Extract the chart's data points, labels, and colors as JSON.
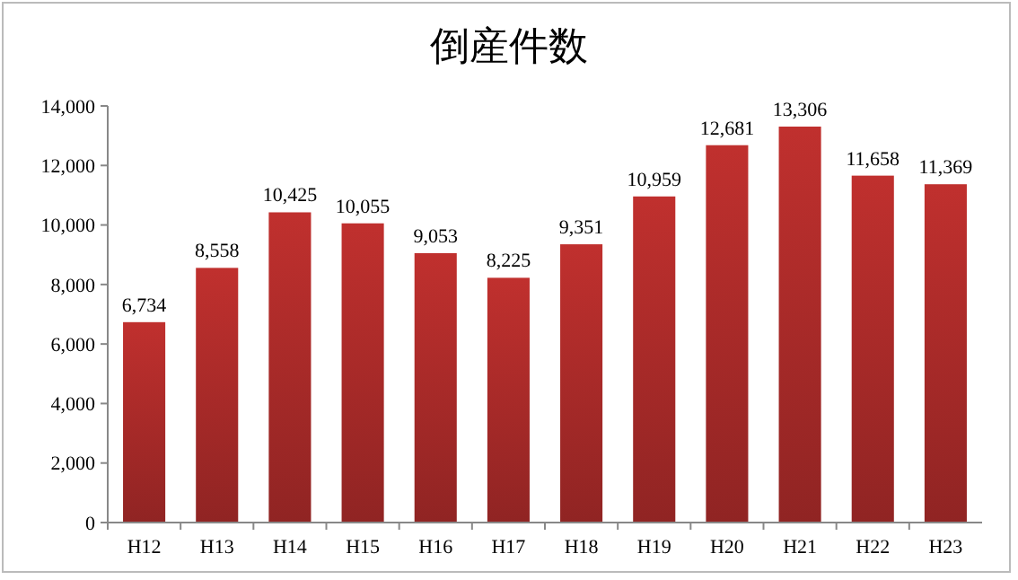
{
  "chart_data": {
    "type": "bar",
    "title": "倒産件数",
    "categories": [
      "H12",
      "H13",
      "H14",
      "H15",
      "H16",
      "H17",
      "H18",
      "H19",
      "H20",
      "H21",
      "H22",
      "H23"
    ],
    "values": [
      6734,
      8558,
      10425,
      10055,
      9053,
      8225,
      9351,
      10959,
      12681,
      13306,
      11658,
      11369
    ],
    "color": "#c0302e",
    "ylim": [
      0,
      14000
    ],
    "yticks": [
      {
        "value": 0,
        "label": "0"
      },
      {
        "value": 2000,
        "label": "2,000"
      },
      {
        "value": 4000,
        "label": "4,000"
      },
      {
        "value": 6000,
        "label": "6,000"
      },
      {
        "value": 8000,
        "label": "8,000"
      },
      {
        "value": 10000,
        "label": "10,000"
      },
      {
        "value": 12000,
        "label": "12,000"
      },
      {
        "value": 14000,
        "label": "14,000"
      }
    ],
    "value_labels": [
      "6,734",
      "8,558",
      "10,425",
      "10,055",
      "9,053",
      "8,225",
      "9,351",
      "10,959",
      "12,681",
      "13,306",
      "11,658",
      "11,369"
    ],
    "grid": false
  }
}
